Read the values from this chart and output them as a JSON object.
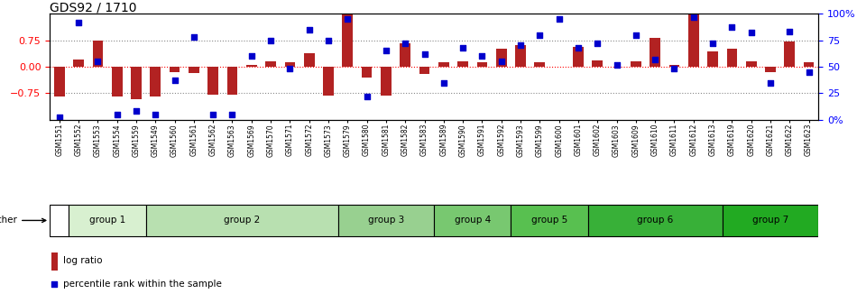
{
  "title": "GDS92 / 1710",
  "samples": [
    "GSM1551",
    "GSM1552",
    "GSM1553",
    "GSM1554",
    "GSM1559",
    "GSM1549",
    "GSM1560",
    "GSM1561",
    "GSM1562",
    "GSM1563",
    "GSM1569",
    "GSM1570",
    "GSM1571",
    "GSM1572",
    "GSM1573",
    "GSM1579",
    "GSM1580",
    "GSM1581",
    "GSM1582",
    "GSM1583",
    "GSM1589",
    "GSM1590",
    "GSM1591",
    "GSM1592",
    "GSM1593",
    "GSM1599",
    "GSM1600",
    "GSM1601",
    "GSM1602",
    "GSM1603",
    "GSM1609",
    "GSM1610",
    "GSM1611",
    "GSM1612",
    "GSM1613",
    "GSM1619",
    "GSM1620",
    "GSM1621",
    "GSM1622",
    "GSM1623"
  ],
  "log_ratio": [
    -0.85,
    0.2,
    0.75,
    -0.85,
    -0.92,
    -0.85,
    -0.15,
    -0.18,
    -0.8,
    -0.8,
    0.05,
    0.15,
    0.12,
    0.38,
    -0.82,
    1.47,
    -0.3,
    -0.82,
    0.65,
    -0.2,
    0.12,
    0.15,
    0.12,
    0.52,
    0.62,
    0.12,
    0.0,
    0.55,
    0.18,
    0.0,
    0.15,
    0.82,
    0.05,
    1.47,
    0.42,
    0.5,
    0.15,
    -0.15,
    0.72,
    0.12
  ],
  "percentile_rank": [
    2,
    92,
    55,
    5,
    8,
    5,
    37,
    78,
    5,
    5,
    60,
    75,
    48,
    85,
    75,
    95,
    22,
    65,
    72,
    62,
    35,
    68,
    60,
    55,
    70,
    80,
    95,
    68,
    72,
    52,
    80,
    57,
    48,
    97,
    72,
    87,
    82,
    35,
    83,
    45
  ],
  "bar_color": "#b22222",
  "dot_color": "#0000cc",
  "groups": [
    {
      "name": "other",
      "indices": [
        0
      ],
      "color": "#ffffff"
    },
    {
      "name": "group 1",
      "indices": [
        1,
        2,
        3,
        4
      ],
      "color": "#d8f0d0"
    },
    {
      "name": "group 2",
      "indices": [
        5,
        6,
        7,
        8,
        9,
        10,
        11,
        12,
        13,
        14
      ],
      "color": "#b8e0b0"
    },
    {
      "name": "group 3",
      "indices": [
        15,
        16,
        17,
        18,
        19
      ],
      "color": "#98d090"
    },
    {
      "name": "group 4",
      "indices": [
        20,
        21,
        22,
        23
      ],
      "color": "#78c870"
    },
    {
      "name": "group 5",
      "indices": [
        24,
        25,
        26,
        27
      ],
      "color": "#58c050"
    },
    {
      "name": "group 6",
      "indices": [
        28,
        29,
        30,
        31,
        32,
        33,
        34
      ],
      "color": "#38b038"
    },
    {
      "name": "group 7",
      "indices": [
        35,
        36,
        37,
        38,
        39
      ],
      "color": "#22aa22"
    }
  ],
  "ylim": [
    -1.5,
    1.5
  ],
  "yticks_left": [
    -0.75,
    0.0,
    0.75
  ],
  "yticks_right": [
    0,
    25,
    50,
    75,
    100
  ],
  "ytick_labels_right": [
    "0%",
    "25",
    "50",
    "75",
    "100%"
  ],
  "hlines": [
    -0.75,
    0.0,
    0.75
  ],
  "tick_label_fontsize": 5.5,
  "group_fontsize": 7.5,
  "legend_fontsize": 7.5,
  "title_fontsize": 10
}
